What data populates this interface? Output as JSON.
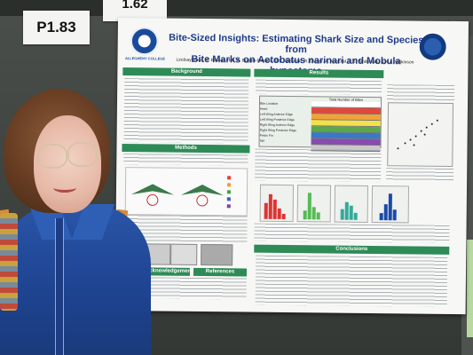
{
  "cards": {
    "left_number": "P1.83",
    "top_number": "1.62"
  },
  "poster": {
    "title_line1": "Bite-Sized Insights: Estimating Shark Size and Species from",
    "title_line2": "Bite Marks on Aetobatus narinari and Mobula hypostoma",
    "authors": "Lindsay Ross, K. Bassos-Hull, A. Boggio-Pasqua, B.C. DeGroot, R. Dreyer, A. Knochel, L.B. Whitenack, & K.A. Wilkinson",
    "left_logo": "ALLEGHENY COLLEGE",
    "sections": {
      "background": "Background",
      "methods": "Methods",
      "results": "Results",
      "conclusions": "Conclusions",
      "acknowledgements": "Acknowledgements",
      "references": "References"
    },
    "table_header": "Total Number of Bites",
    "table_rows": [
      "Bite Location",
      "Head",
      "Left Wing Anterior Edge",
      "Left Wing Posterior Edge",
      "Right Wing Anterior Edge",
      "Right Wing Posterior Edge",
      "Pelvic Fin",
      "Tail"
    ]
  }
}
